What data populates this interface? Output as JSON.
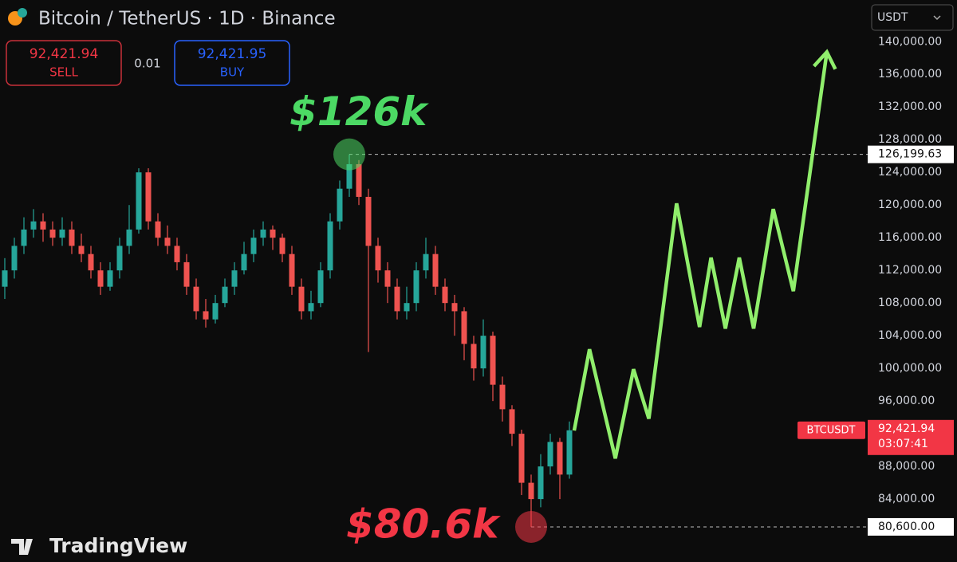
{
  "chart_data": {
    "type": "candlestick",
    "title": "Bitcoin / TetherUS · 1D · Binance",
    "currency": "USDT",
    "brand": "TradingView",
    "order": {
      "sell": {
        "price": "92,421.94",
        "label": "SELL"
      },
      "spread": "0.01",
      "buy": {
        "price": "92,421.95",
        "label": "BUY"
      }
    },
    "up_color": "#26a69a",
    "down_color": "#ef5350",
    "open": [
      110000,
      112000,
      115000,
      117000,
      118000,
      117000,
      116000,
      117000,
      115000,
      114000,
      112000,
      110000,
      112000,
      115000,
      117000,
      124000,
      118000,
      116000,
      115000,
      113000,
      110000,
      107000,
      106000,
      108000,
      110000,
      112000,
      114000,
      116000,
      117000,
      116000,
      114000,
      110000,
      107000,
      108000,
      112000,
      118000,
      122000,
      125000,
      121000,
      115000,
      112000,
      110000,
      107000,
      108000,
      112000,
      114000,
      110000,
      108000,
      107000,
      103000,
      100000,
      104000,
      98000,
      95000,
      92000,
      86000,
      84000,
      88000,
      91000,
      87000
    ],
    "high": [
      113500,
      116000,
      118500,
      119500,
      119000,
      118000,
      118500,
      118000,
      116500,
      115000,
      113000,
      113000,
      116000,
      120000,
      124500,
      124500,
      119000,
      117500,
      116000,
      114000,
      111000,
      108500,
      109000,
      111000,
      113000,
      115500,
      117000,
      118000,
      117500,
      116500,
      115000,
      111000,
      109500,
      113000,
      119000,
      123000,
      126199.63,
      125500,
      122000,
      116000,
      113000,
      111000,
      110000,
      113000,
      116000,
      115000,
      111000,
      109000,
      107500,
      104000,
      106000,
      104500,
      99000,
      95500,
      92500,
      87000,
      89500,
      92000,
      91500,
      93500
    ],
    "low": [
      108500,
      111000,
      114000,
      116000,
      115500,
      115000,
      115000,
      114000,
      113000,
      111000,
      109000,
      109500,
      111000,
      114000,
      116500,
      117000,
      115000,
      114000,
      112000,
      109000,
      106000,
      105000,
      105500,
      107500,
      109000,
      111500,
      113000,
      115000,
      114500,
      113000,
      109000,
      106000,
      106000,
      107500,
      111000,
      117000,
      121000,
      120000,
      102000,
      110500,
      108000,
      106000,
      106000,
      107000,
      111000,
      109000,
      107000,
      104000,
      101000,
      98500,
      99000,
      96000,
      93500,
      90500,
      84500,
      80600,
      83000,
      87000,
      84000,
      86500
    ],
    "close": [
      112000,
      115000,
      117000,
      118000,
      117000,
      116000,
      117000,
      115000,
      114000,
      112000,
      110000,
      112000,
      115000,
      117000,
      124000,
      118000,
      116000,
      115000,
      113000,
      110000,
      107000,
      106000,
      108000,
      110000,
      112000,
      114000,
      116000,
      117000,
      116000,
      114000,
      110000,
      107000,
      108000,
      112000,
      118000,
      122000,
      125000,
      121000,
      115000,
      112000,
      110000,
      107000,
      108000,
      112000,
      114000,
      110000,
      108000,
      107000,
      103000,
      100000,
      104000,
      98000,
      95000,
      92000,
      86000,
      84000,
      88000,
      91000,
      87000,
      92421.94
    ],
    "projection": {
      "color": "#90ee6c",
      "x": [
        59.5,
        61.1,
        63.8,
        65.7,
        67.3,
        70.2,
        72.6,
        73.8,
        75.3,
        76.75,
        78.25,
        80.3,
        82.4,
        85.9
      ],
      "values": [
        92390,
        102340,
        88980,
        99900,
        93850,
        120200,
        105070,
        113560,
        104880,
        113560,
        104880,
        119510,
        109460,
        138730
      ]
    },
    "price_lines": [
      {
        "value": 126199.63,
        "label": "126,199.63",
        "annotation": "$126k",
        "color": "#4cd964",
        "at": "high"
      },
      {
        "value": 80600,
        "label": "80,600.00",
        "annotation": "$80.6k",
        "color": "#f23645",
        "at": "low"
      }
    ],
    "last_price": {
      "value": 92421.94,
      "label": "92,421.94",
      "symbol": "BTCUSDT",
      "countdown": "03:07:41"
    },
    "ylim": [
      76300,
      145100
    ],
    "yticks": [
      {
        "value": 84000,
        "label": "84,000.00"
      },
      {
        "value": 88000,
        "label": "88,000.00"
      },
      {
        "value": 96000,
        "label": "96,000.00"
      },
      {
        "value": 100000,
        "label": "100,000.00"
      },
      {
        "value": 104000,
        "label": "104,000.00"
      },
      {
        "value": 108000,
        "label": "108,000.00"
      },
      {
        "value": 112000,
        "label": "112,000.00"
      },
      {
        "value": 116000,
        "label": "116,000.00"
      },
      {
        "value": 120000,
        "label": "120,000.00"
      },
      {
        "value": 124000,
        "label": "124,000.00"
      },
      {
        "value": 128000,
        "label": "128,000.00"
      },
      {
        "value": 132000,
        "label": "132,000.00"
      },
      {
        "value": 136000,
        "label": "136,000.00"
      },
      {
        "value": 140000,
        "label": "140,000.00"
      }
    ],
    "grid": false
  }
}
